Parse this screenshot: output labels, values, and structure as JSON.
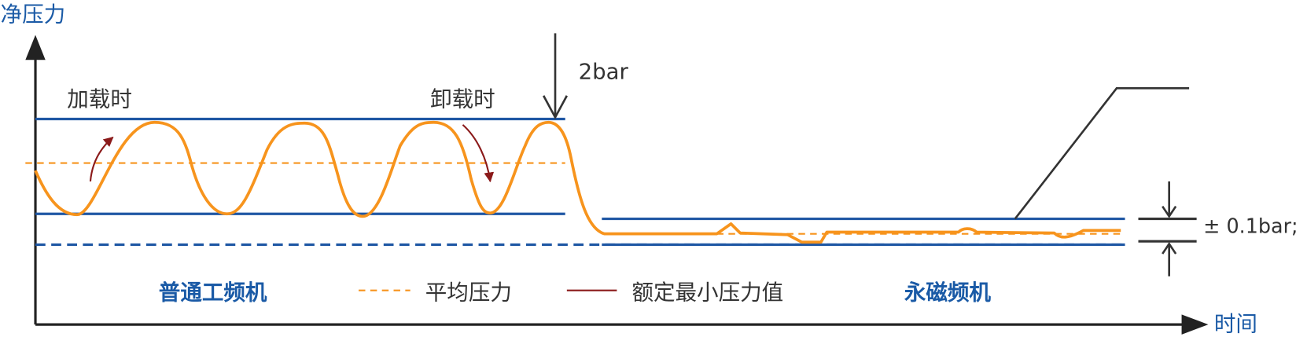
{
  "axes": {
    "y_label": "净压力",
    "x_label": "时间"
  },
  "annotations": {
    "loading": "加载时",
    "unloading": "卸载时",
    "pressure_band": "2bar",
    "tolerance": "± 0.1bar;"
  },
  "labels": {
    "conventional": "普通工频机",
    "permanent_magnet": "永磁频机"
  },
  "legend": {
    "items": [
      {
        "label": "平均压力"
      },
      {
        "label": "额定最小压力值"
      }
    ]
  }
}
